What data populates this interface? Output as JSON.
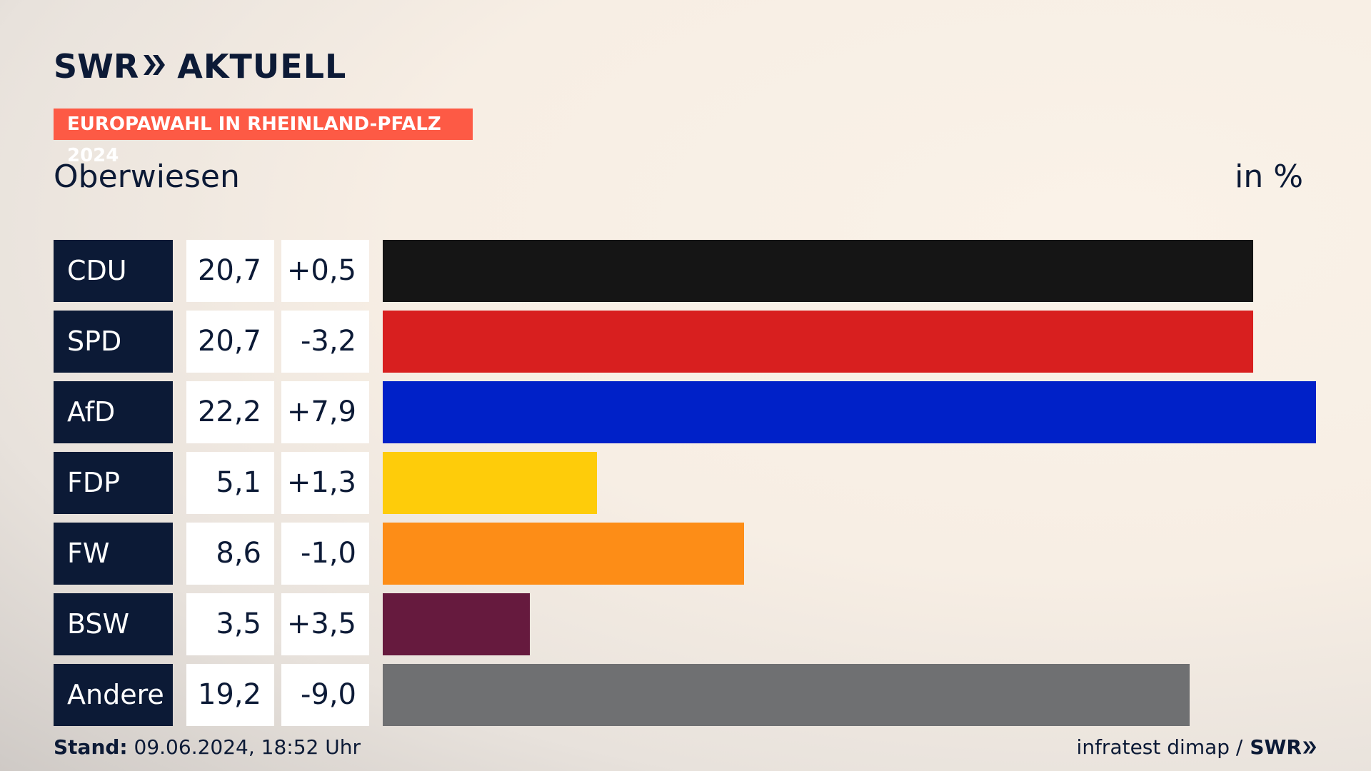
{
  "brand": {
    "logo_text": "SWR",
    "logo_suffix": "AKTUELL",
    "mini_logo": "SWR"
  },
  "header": {
    "tag": "EUROPAWAHL IN RHEINLAND-PFALZ 2024",
    "location": "Oberwiesen",
    "unit": "in %"
  },
  "chart_data": {
    "type": "bar",
    "orientation": "horizontal",
    "categories": [
      "CDU",
      "SPD",
      "AfD",
      "FDP",
      "FW",
      "BSW",
      "Andere"
    ],
    "values": [
      20.7,
      20.7,
      22.2,
      5.1,
      8.6,
      3.5,
      19.2
    ],
    "value_labels": [
      "20,7",
      "20,7",
      "22,2",
      "5,1",
      "8,6",
      "3,5",
      "19,2"
    ],
    "diff_labels": [
      "+0,5",
      "-3,2",
      "+7,9",
      "+1,3",
      "-1,0",
      "+3,5",
      "-9,0"
    ],
    "colors": [
      "#151515",
      "#d81f1f",
      "#0021c8",
      "#fecc0a",
      "#fd8d17",
      "#661a3e",
      "#6f7072"
    ],
    "xlim": [
      0,
      22.2
    ],
    "grid": false,
    "legend": "none"
  },
  "footer": {
    "stand_label": "Stand:",
    "stand_value": "09.06.2024, 18:52 Uhr",
    "source": "infratest dimap /"
  }
}
